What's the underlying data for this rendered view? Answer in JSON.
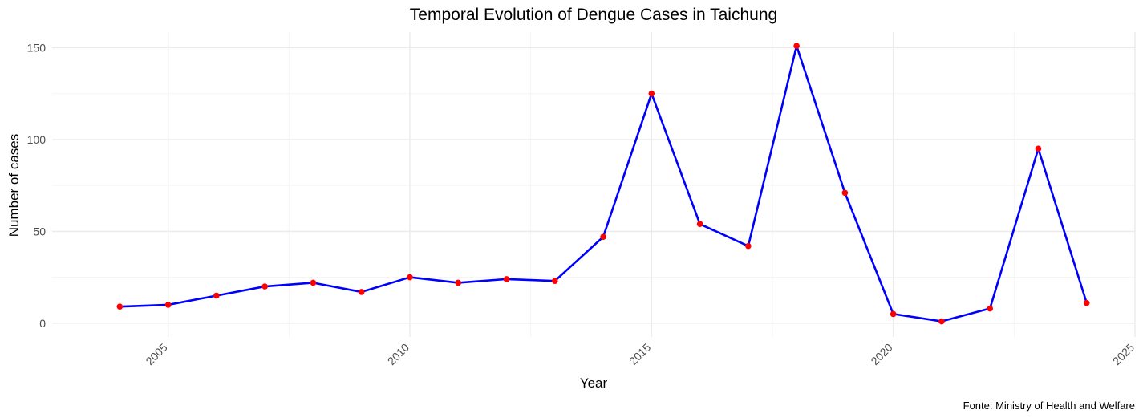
{
  "chart_data": {
    "type": "line",
    "title": "Temporal Evolution of Dengue Cases in Taichung",
    "xlabel": "Year",
    "ylabel": "Number of cases",
    "caption": "Fonte: Ministry of Health and Welfare",
    "x": [
      2004,
      2005,
      2006,
      2007,
      2008,
      2009,
      2010,
      2011,
      2012,
      2013,
      2014,
      2015,
      2016,
      2017,
      2018,
      2019,
      2020,
      2021,
      2022,
      2023,
      2024
    ],
    "values": [
      9,
      10,
      15,
      20,
      22,
      17,
      25,
      22,
      24,
      23,
      47,
      125,
      54,
      42,
      151,
      71,
      5,
      1,
      8,
      95,
      11
    ],
    "xlim": [
      2002.6,
      2025
    ],
    "ylim": [
      -7.5,
      158.5
    ],
    "x_ticks": [
      "2005",
      "2010",
      "2015",
      "2020",
      "2025"
    ],
    "y_ticks": [
      "0",
      "50",
      "100",
      "150"
    ],
    "grid": true,
    "colors": {
      "line": "#0000FF",
      "points": "#FF0000",
      "grid_major": "#EBEBEB",
      "grid_minor": "#F4F4F4"
    }
  }
}
